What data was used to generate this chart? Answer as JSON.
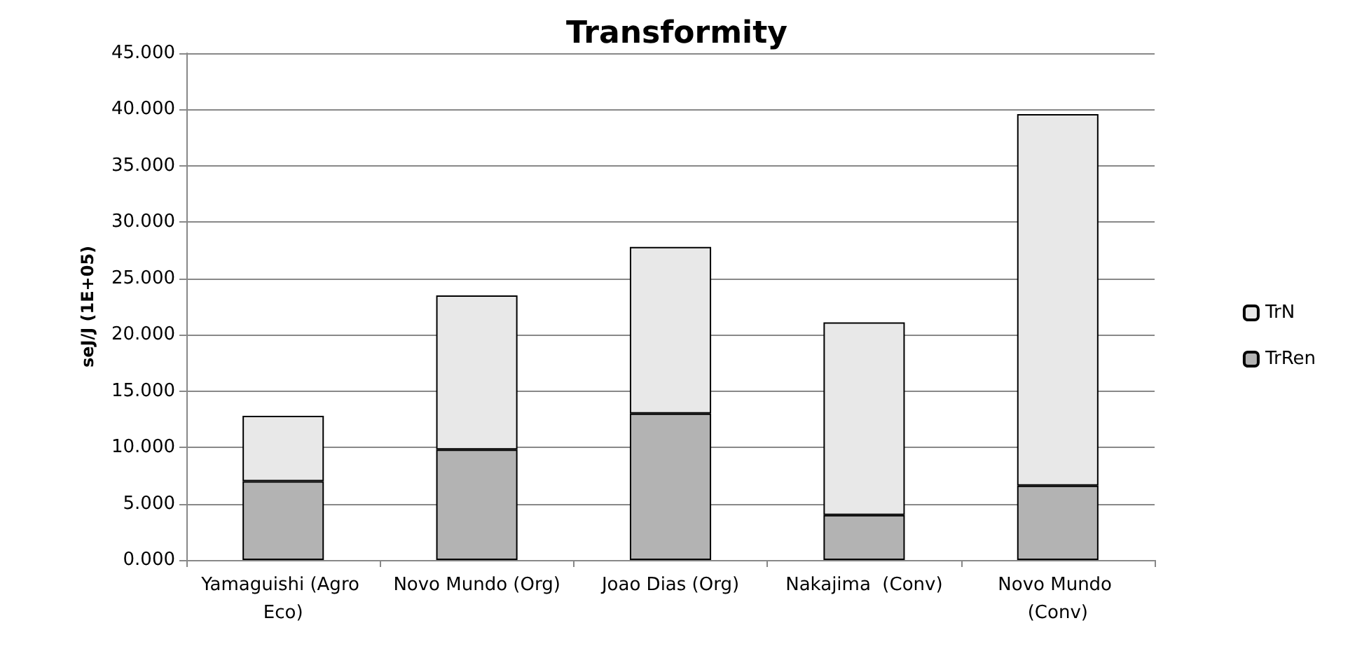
{
  "chart_data": {
    "type": "bar",
    "title": "Transformity",
    "ylabel": "seJ/J (1E+05)",
    "stacked": true,
    "categories": [
      "Yamaguishi (Agro Eco)",
      "Novo Mundo (Org)",
      "Joao Dias (Org)",
      "Nakajima  (Conv)",
      "Novo Mundo (Conv)"
    ],
    "series": [
      {
        "name": "TrRen",
        "color": "#b3b3b3",
        "values": [
          7.0,
          9.8,
          13.0,
          4.0,
          6.6
        ]
      },
      {
        "name": "TrN",
        "color": "#e8e8e8",
        "values": [
          5.8,
          13.7,
          14.8,
          17.1,
          33.0
        ]
      }
    ],
    "ylim": [
      0,
      45
    ],
    "yticks": [
      {
        "value": 0,
        "label": "0.000"
      },
      {
        "value": 5,
        "label": "5.000"
      },
      {
        "value": 10,
        "label": "10.000"
      },
      {
        "value": 15,
        "label": "15.000"
      },
      {
        "value": 20,
        "label": "20.000"
      },
      {
        "value": 25,
        "label": "25.000"
      },
      {
        "value": 30,
        "label": "30.000"
      },
      {
        "value": 35,
        "label": "35.000"
      },
      {
        "value": 40,
        "label": "40.000"
      },
      {
        "value": 45,
        "label": "45.000"
      }
    ],
    "grid": "y",
    "legend": "right"
  }
}
